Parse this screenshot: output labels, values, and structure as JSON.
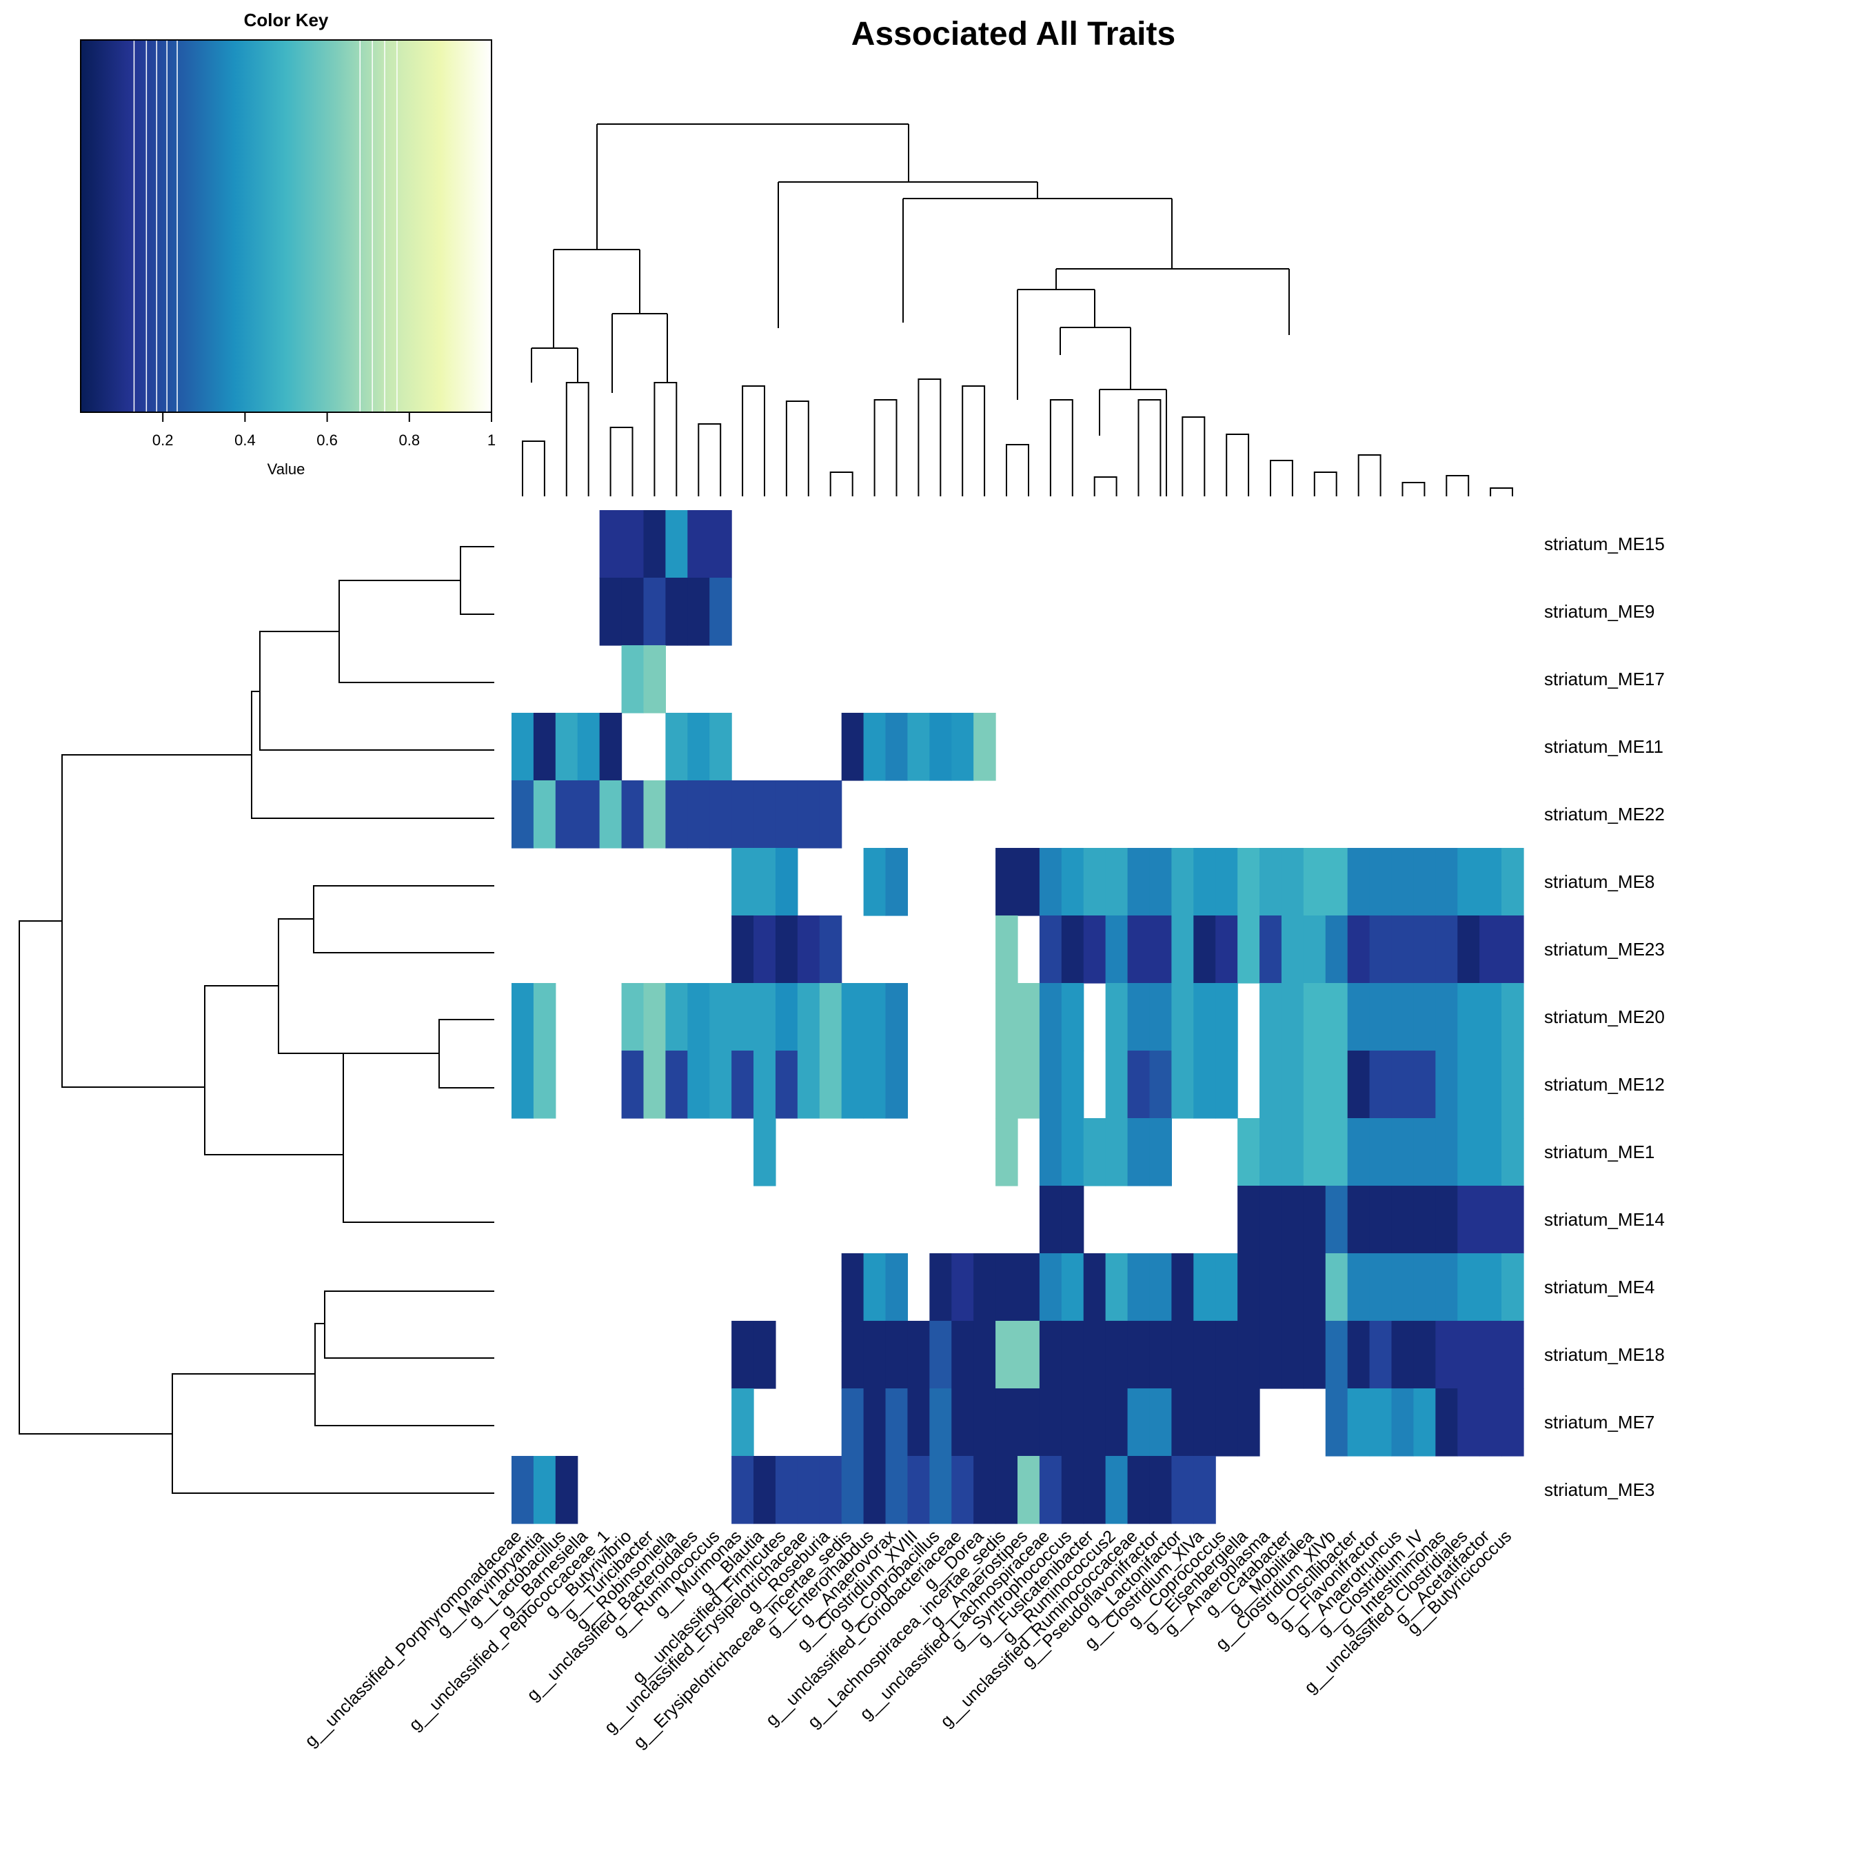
{
  "chart_data": {
    "type": "heatmap",
    "title": "Associated All Traits",
    "color_key": {
      "title": "Color Key",
      "xlabel": "Value",
      "ticks": [
        "0.2",
        "0.4",
        "0.6",
        "0.8",
        "1"
      ],
      "tick_values": [
        0.2,
        0.4,
        0.6,
        0.8,
        1.0
      ],
      "range": [
        0,
        1
      ],
      "colormap": [
        "#081d58",
        "#253494",
        "#225ea8",
        "#1d91c0",
        "#41b6c4",
        "#7fcdbb",
        "#c7e9b4",
        "#edf8b1",
        "#ffffd9",
        "#ffffff"
      ]
    },
    "columns": [
      "g__unclassified_Porphyromonadaceae",
      "g__Marvinbryantia",
      "g__Lactobacillus",
      "g__Barnesiella",
      "g__unclassified_Peptococcaceae_1",
      "g__Butyrivibrio",
      "g__Turicibacter",
      "g__Robinsoniella",
      "g__unclassified_Bacteroidales",
      "g__Ruminococcus",
      "g__Murimonas",
      "g__Blautia",
      "g__unclassified_Firmicutes",
      "g__unclassified_Erysipelotrichaceae",
      "g__Roseburia",
      "g__Erysipelotrichaceae_incertae_sedis",
      "g__Enterorhabdus",
      "g__Anaerovorax",
      "g__Clostridium_XVIII",
      "g__Coprobacillus",
      "g__unclassified_Coriobacteriaceae",
      "g__Dorea",
      "g__Lachnospiracea_incertae_sedis",
      "g__Anaerostipes",
      "g__unclassified_Lachnospiraceae",
      "g__Syntrophococcus",
      "g__Fusicatenibacter",
      "g__Ruminococcus2",
      "g__unclassified_Ruminococcaceae",
      "g__Pseudoflavonifractor",
      "g__Lactonifactor",
      "g__Clostridium_XlVa",
      "g__Coprococcus",
      "g__Eisenbergiella",
      "g__Anaeroplasma",
      "g__Catabacter",
      "g__Mobilitalea",
      "g__Clostridium_XlVb",
      "g__Oscillibacter",
      "g__Flavonifractor",
      "g__Anaerotruncus",
      "g__Clostridium_IV",
      "g__Intestinimonas",
      "g__unclassified_Clostridiales",
      "g__Acetatifactor",
      "g__Butyricicoccus"
    ],
    "rows": [
      "striatum_ME15",
      "striatum_ME9",
      "striatum_ME17",
      "striatum_ME11",
      "striatum_ME22",
      "striatum_ME8",
      "striatum_ME23",
      "striatum_ME20",
      "striatum_ME12",
      "striatum_ME1",
      "striatum_ME14",
      "striatum_ME4",
      "striatum_ME18",
      "striatum_ME7",
      "striatum_ME3"
    ],
    "values": [
      [
        null,
        null,
        null,
        null,
        0.1,
        0.1,
        0.05,
        0.35,
        0.1,
        0.1,
        null,
        null,
        null,
        null,
        null,
        null,
        null,
        null,
        null,
        null,
        null,
        null,
        null,
        null,
        null,
        null,
        null,
        null,
        null,
        null,
        null,
        null,
        null,
        null,
        null,
        null,
        null,
        null,
        null,
        null,
        null,
        null,
        null,
        null,
        null,
        null
      ],
      [
        null,
        null,
        null,
        null,
        0.05,
        0.05,
        0.15,
        0.05,
        0.05,
        0.22,
        null,
        null,
        null,
        null,
        null,
        null,
        null,
        null,
        null,
        null,
        null,
        null,
        null,
        null,
        null,
        null,
        null,
        null,
        null,
        null,
        null,
        null,
        null,
        null,
        null,
        null,
        null,
        null,
        null,
        null,
        null,
        null,
        null,
        null,
        null,
        null
      ],
      [
        null,
        null,
        null,
        null,
        null,
        0.5,
        0.55,
        null,
        null,
        null,
        null,
        null,
        null,
        null,
        null,
        null,
        null,
        null,
        null,
        null,
        null,
        null,
        null,
        null,
        null,
        null,
        null,
        null,
        null,
        null,
        null,
        null,
        null,
        null,
        null,
        null,
        null,
        null,
        null,
        null,
        null,
        null,
        null,
        null,
        null,
        null
      ],
      [
        0.35,
        0.05,
        0.4,
        0.35,
        0.05,
        null,
        null,
        0.4,
        0.35,
        0.4,
        null,
        null,
        null,
        null,
        null,
        0.05,
        0.35,
        0.3,
        0.38,
        0.33,
        0.35,
        0.55,
        null,
        null,
        null,
        null,
        null,
        null,
        null,
        null,
        null,
        null,
        null,
        null,
        null,
        null,
        null,
        null,
        null,
        null,
        null,
        null,
        null,
        null,
        null,
        null
      ],
      [
        0.22,
        0.5,
        0.15,
        0.15,
        0.5,
        0.15,
        0.55,
        0.15,
        0.15,
        0.15,
        0.15,
        0.15,
        0.15,
        0.15,
        0.15,
        null,
        null,
        null,
        null,
        null,
        null,
        null,
        null,
        null,
        null,
        null,
        null,
        null,
        null,
        null,
        null,
        null,
        null,
        null,
        null,
        null,
        null,
        null,
        null,
        null,
        null,
        null,
        null,
        null,
        null,
        null
      ],
      [
        null,
        null,
        null,
        null,
        null,
        null,
        null,
        null,
        null,
        null,
        0.38,
        0.38,
        0.33,
        null,
        null,
        null,
        0.35,
        0.3,
        null,
        null,
        null,
        null,
        0.05,
        0.05,
        0.3,
        0.35,
        0.4,
        0.4,
        0.3,
        0.3,
        0.4,
        0.35,
        0.35,
        0.45,
        0.4,
        0.4,
        0.45,
        0.45,
        0.3,
        0.3,
        0.3,
        0.3,
        0.3,
        0.35,
        0.35,
        0.4
      ],
      [
        null,
        null,
        null,
        null,
        null,
        null,
        null,
        null,
        null,
        null,
        0.05,
        0.1,
        0.05,
        0.1,
        0.15,
        null,
        null,
        null,
        null,
        null,
        null,
        null,
        0.55,
        null,
        0.15,
        0.05,
        0.1,
        0.3,
        0.1,
        0.1,
        0.4,
        0.05,
        0.1,
        0.45,
        0.15,
        0.4,
        0.4,
        0.28,
        0.1,
        0.15,
        0.15,
        0.15,
        0.15,
        0.05,
        0.1,
        0.1
      ],
      [
        0.35,
        0.5,
        null,
        null,
        null,
        0.5,
        0.55,
        0.4,
        0.35,
        0.38,
        0.38,
        0.38,
        0.33,
        0.4,
        0.5,
        0.35,
        0.35,
        0.3,
        null,
        null,
        null,
        null,
        0.55,
        0.55,
        0.3,
        0.35,
        null,
        0.4,
        0.3,
        0.3,
        0.4,
        0.35,
        0.35,
        null,
        0.4,
        0.4,
        0.45,
        0.45,
        0.3,
        0.3,
        0.3,
        0.3,
        0.3,
        0.35,
        0.35,
        0.4
      ],
      [
        0.35,
        0.5,
        null,
        null,
        null,
        0.15,
        0.55,
        0.15,
        0.35,
        0.38,
        0.15,
        0.38,
        0.15,
        0.4,
        0.5,
        0.35,
        0.35,
        0.3,
        null,
        null,
        null,
        null,
        0.55,
        0.55,
        0.3,
        0.35,
        null,
        0.4,
        0.15,
        0.2,
        0.4,
        0.35,
        0.35,
        null,
        0.4,
        0.4,
        0.45,
        0.45,
        0.05,
        0.15,
        0.15,
        0.15,
        0.3,
        0.35,
        0.35,
        0.4
      ],
      [
        null,
        null,
        null,
        null,
        null,
        null,
        null,
        null,
        null,
        null,
        null,
        0.38,
        null,
        null,
        null,
        null,
        null,
        null,
        null,
        null,
        null,
        null,
        0.55,
        null,
        0.3,
        0.35,
        0.4,
        0.4,
        0.3,
        0.3,
        null,
        null,
        null,
        0.45,
        0.4,
        0.4,
        0.45,
        0.45,
        0.3,
        0.3,
        0.3,
        0.3,
        0.3,
        0.35,
        0.35,
        0.4
      ],
      [
        null,
        null,
        null,
        null,
        null,
        null,
        null,
        null,
        null,
        null,
        null,
        null,
        null,
        null,
        null,
        null,
        null,
        null,
        null,
        null,
        null,
        null,
        null,
        null,
        0.05,
        0.05,
        null,
        null,
        null,
        null,
        null,
        null,
        null,
        0.05,
        0.05,
        0.05,
        0.05,
        0.25,
        0.05,
        0.05,
        0.05,
        0.05,
        0.05,
        0.1,
        0.1,
        0.1
      ],
      [
        null,
        null,
        null,
        null,
        null,
        null,
        null,
        null,
        null,
        null,
        null,
        null,
        null,
        null,
        null,
        0.05,
        0.35,
        0.3,
        null,
        0.05,
        0.1,
        0.05,
        0.05,
        0.05,
        0.3,
        0.35,
        0.05,
        0.4,
        0.3,
        0.3,
        0.05,
        0.35,
        0.35,
        0.05,
        0.05,
        0.05,
        0.05,
        0.5,
        0.3,
        0.3,
        0.3,
        0.3,
        0.3,
        0.35,
        0.35,
        0.4
      ],
      [
        null,
        null,
        null,
        null,
        null,
        null,
        null,
        null,
        null,
        null,
        0.05,
        0.05,
        null,
        null,
        null,
        0.05,
        0.05,
        0.05,
        0.05,
        0.2,
        0.05,
        0.05,
        0.55,
        0.55,
        0.05,
        0.05,
        0.05,
        0.05,
        0.05,
        0.05,
        0.05,
        0.05,
        0.05,
        0.05,
        0.05,
        0.05,
        0.05,
        0.25,
        0.05,
        0.15,
        0.05,
        0.05,
        0.1,
        0.1,
        0.1,
        0.1
      ],
      [
        null,
        null,
        null,
        null,
        null,
        null,
        null,
        null,
        null,
        null,
        0.38,
        null,
        null,
        null,
        null,
        0.22,
        0.05,
        0.22,
        0.05,
        0.25,
        0.05,
        0.05,
        0.05,
        0.05,
        0.05,
        0.05,
        0.05,
        0.05,
        0.3,
        0.3,
        0.05,
        0.05,
        0.05,
        0.05,
        null,
        null,
        null,
        0.25,
        0.35,
        0.35,
        0.3,
        0.35,
        0.05,
        0.1,
        0.1,
        0.1
      ],
      [
        0.22,
        0.35,
        0.05,
        null,
        null,
        null,
        null,
        null,
        null,
        null,
        0.15,
        0.05,
        0.15,
        0.15,
        0.15,
        0.22,
        0.05,
        0.22,
        0.15,
        0.25,
        0.15,
        0.05,
        0.05,
        0.55,
        0.15,
        0.05,
        0.05,
        0.3,
        0.05,
        0.05,
        0.15,
        0.15,
        null,
        null,
        null,
        null,
        null,
        null,
        null,
        null,
        null,
        null,
        null,
        null,
        null,
        null
      ]
    ]
  }
}
